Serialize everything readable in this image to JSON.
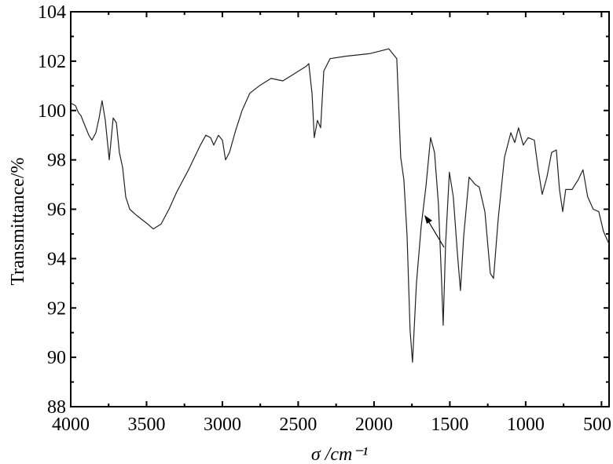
{
  "chart_data": {
    "type": "line",
    "xlabel": "σ /cm⁻¹",
    "ylabel": "Transmittance/%",
    "x": [
      4000,
      3969,
      3948,
      3933,
      3907,
      3881,
      3860,
      3834,
      3813,
      3793,
      3772,
      3746,
      3720,
      3699,
      3679,
      3658,
      3637,
      3611,
      3575,
      3534,
      3492,
      3456,
      3404,
      3352,
      3301,
      3223,
      3145,
      3109,
      3078,
      3057,
      3026,
      3000,
      2979,
      2953,
      2912,
      2870,
      2819,
      2756,
      2679,
      2601,
      2523,
      2446,
      2430,
      2409,
      2394,
      2373,
      2352,
      2331,
      2290,
      2187,
      2031,
      1902,
      1850,
      1824,
      1803,
      1782,
      1762,
      1746,
      1720,
      1689,
      1658,
      1627,
      1601,
      1575,
      1554,
      1544,
      1528,
      1503,
      1477,
      1451,
      1430,
      1409,
      1373,
      1332,
      1306,
      1269,
      1233,
      1212,
      1181,
      1140,
      1098,
      1072,
      1047,
      1016,
      984,
      943,
      917,
      891,
      860,
      829,
      798,
      777,
      756,
      736,
      694,
      653,
      622,
      591,
      554,
      518,
      487,
      451
    ],
    "values": [
      100.3,
      100.2,
      99.9,
      99.8,
      99.4,
      99.0,
      98.8,
      99.1,
      99.7,
      100.4,
      99.6,
      98.0,
      99.7,
      99.5,
      98.3,
      97.7,
      96.5,
      96.0,
      95.8,
      95.6,
      95.4,
      95.2,
      95.4,
      96.0,
      96.7,
      97.6,
      98.6,
      99.0,
      98.9,
      98.6,
      99.0,
      98.8,
      98.0,
      98.3,
      99.2,
      100.0,
      100.7,
      101.0,
      101.3,
      101.2,
      101.5,
      101.8,
      101.9,
      100.7,
      98.9,
      99.6,
      99.3,
      101.6,
      102.1,
      102.2,
      102.3,
      102.5,
      102.1,
      98.1,
      97.2,
      94.9,
      91.1,
      89.8,
      93.0,
      95.3,
      96.9,
      98.9,
      98.3,
      96.2,
      93.0,
      91.3,
      94.6,
      97.5,
      96.5,
      94.3,
      92.7,
      94.9,
      97.3,
      97.0,
      96.9,
      95.9,
      93.4,
      93.2,
      95.6,
      98.1,
      99.1,
      98.7,
      99.3,
      98.6,
      98.9,
      98.8,
      97.6,
      96.6,
      97.3,
      98.3,
      98.4,
      96.8,
      95.9,
      96.8,
      96.8,
      97.2,
      97.6,
      96.5,
      96.0,
      95.9,
      95.1,
      94.6
    ],
    "color": "#222222",
    "xlim": [
      4000,
      450
    ],
    "xticks": [
      4000,
      3500,
      3000,
      2500,
      2000,
      1500,
      1000,
      500
    ],
    "ylim": [
      88,
      104
    ],
    "yticks": [
      88,
      90,
      92,
      94,
      96,
      98,
      100,
      102,
      104
    ]
  }
}
